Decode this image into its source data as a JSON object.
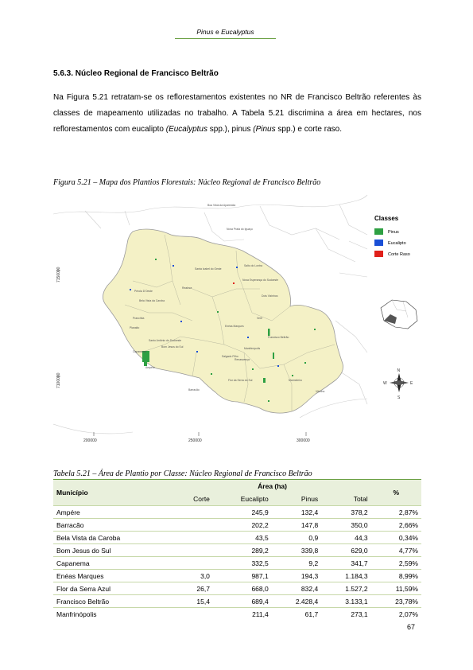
{
  "header": {
    "title_part1": "Pinus",
    "title_conj": " e ",
    "title_part2": "Eucalyptus"
  },
  "section": {
    "heading": "5.6.3.   Núcleo Regional de Francisco Beltrão"
  },
  "paragraph": {
    "text1": "Na Figura 5.21 retratam-se os reflorestamentos existentes no NR de Francisco Beltrão referentes às classes de mapeamento utilizadas no trabalho. A Tabela 5.21 discrimina a área em hectares, nos reflorestamentos com eucalipto ",
    "euc_sci": "(Eucalyptus",
    "euc_spp": " spp.)",
    "text2": ", pinus ",
    "pin_sci": "(Pinus",
    "pin_spp": " spp.)",
    "text3": " e corte raso."
  },
  "figure": {
    "caption": "Figura 5.21 – Mapa dos Plantios Florestais: Núcleo Regional de Francisco Beltrão",
    "legend_title": "Classes",
    "legend": [
      {
        "label": "Pinus",
        "color": "#2ea043"
      },
      {
        "label": "Eucalipto",
        "color": "#1a4fd6"
      },
      {
        "label": "Corte Raso",
        "color": "#e0201a"
      }
    ],
    "x_ticks": [
      "200000",
      "250000",
      "300000"
    ],
    "y_ticks": [
      "7150000",
      "7100000"
    ],
    "compass": {
      "n": "N",
      "s": "S",
      "e": "E",
      "w": "W"
    },
    "places": [
      "Ampére",
      "Barracão",
      "Capanema",
      "Realeza",
      "Francisco Beltrão",
      "Marmeleiro",
      "Enéas Marques",
      "Salgado Filho",
      "Dois Vizinhos",
      "Verê",
      "Planalto",
      "Manfrinópolis",
      "Flor da Serra do Sul",
      "Bom Jesus do Sul",
      "Pérola D'Oeste",
      "Nova Prata do Iguaçu",
      "Renascença",
      "Pranchita",
      "Bela Vista da Caroba",
      "Santo Antônio do Sudoeste",
      "Nova Esperança do Sudoeste",
      "Santa Izabel do Oeste",
      "Boa Vista da Aparecida",
      "Salto do Lontra",
      "Vitorino"
    ]
  },
  "table": {
    "caption": "Tabela 5.21 – Área de Plantio por Classe: Núcleo Regional de Francisco Beltrão",
    "headers": {
      "municipio": "Município",
      "area": "Área (ha)",
      "pct": "%",
      "corte": "Corte",
      "eucalipto": "Eucalipto",
      "pinus": "Pinus",
      "total": "Total"
    },
    "rows": [
      {
        "municipio": "Ampére",
        "corte": "",
        "eucalipto": "245,9",
        "pinus": "132,4",
        "total": "378,2",
        "pct": "2,87%"
      },
      {
        "municipio": "Barracão",
        "corte": "",
        "eucalipto": "202,2",
        "pinus": "147,8",
        "total": "350,0",
        "pct": "2,66%"
      },
      {
        "municipio": "Bela Vista da Caroba",
        "corte": "",
        "eucalipto": "43,5",
        "pinus": "0,9",
        "total": "44,3",
        "pct": "0,34%"
      },
      {
        "municipio": "Bom Jesus do Sul",
        "corte": "",
        "eucalipto": "289,2",
        "pinus": "339,8",
        "total": "629,0",
        "pct": "4,77%"
      },
      {
        "municipio": "Capanema",
        "corte": "",
        "eucalipto": "332,5",
        "pinus": "9,2",
        "total": "341,7",
        "pct": "2,59%"
      },
      {
        "municipio": "Enéas Marques",
        "corte": "3,0",
        "eucalipto": "987,1",
        "pinus": "194,3",
        "total": "1.184,3",
        "pct": "8,99%"
      },
      {
        "municipio": "Flor da Serra Azul",
        "corte": "26,7",
        "eucalipto": "668,0",
        "pinus": "832,4",
        "total": "1.527,2",
        "pct": "11,59%"
      },
      {
        "municipio": "Francisco Beltrão",
        "corte": "15,4",
        "eucalipto": "689,4",
        "pinus": "2.428,4",
        "total": "3.133,1",
        "pct": "23,78%"
      },
      {
        "municipio": "Manfrinópolis",
        "corte": "",
        "eucalipto": "211,4",
        "pinus": "61,7",
        "total": "273,1",
        "pct": "2,07%"
      }
    ]
  },
  "page_number": "67"
}
